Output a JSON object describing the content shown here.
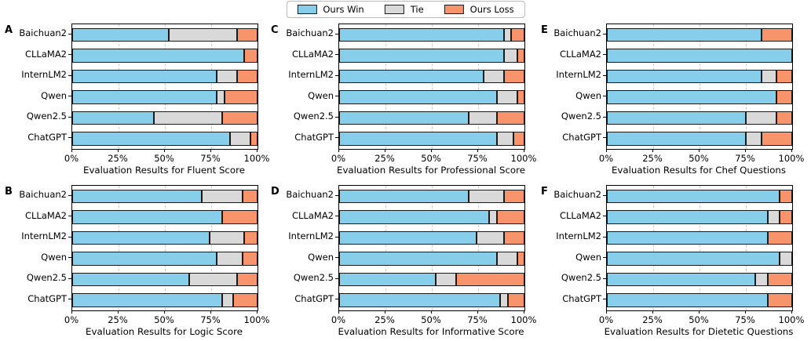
{
  "figure": {
    "background": "#ffffff",
    "models": [
      "Baichuan2",
      "CLLaMA2",
      "InternLM2",
      "Qwen",
      "Qwen2.5",
      "ChatGPT"
    ],
    "xticks": [
      "0%",
      "25%",
      "50%",
      "75%",
      "100%"
    ]
  },
  "legend": {
    "position": "top-center",
    "items": [
      {
        "label": "Ours Win",
        "color": "#87CEEB"
      },
      {
        "label": "Tie",
        "color": "#D9D9D9"
      },
      {
        "label": "Ours Loss",
        "color": "#F8946C"
      }
    ]
  },
  "colors": {
    "win": "#87CEEB",
    "tie": "#D9D9D9",
    "loss": "#F8946C",
    "bar_edge": "#1a1a1a",
    "gridline": "#cbcbcb"
  },
  "chart_data": [
    {
      "type": "bar",
      "orientation": "horizontal",
      "stacked": true,
      "grid": "dashed vertical at 25/50/75",
      "panel": "A",
      "title": "Evaluation Results for Fluent Score",
      "xlim": [
        0,
        100
      ],
      "xticks": [
        "0%",
        "25%",
        "50%",
        "75%",
        "100%"
      ],
      "categories": [
        "Baichuan2",
        "CLLaMA2",
        "InternLM2",
        "Qwen",
        "Qwen2.5",
        "ChatGPT"
      ],
      "series": [
        {
          "name": "Ours Win",
          "color": "#87CEEB",
          "values": [
            52,
            93,
            78,
            78,
            44,
            85
          ]
        },
        {
          "name": "Tie",
          "color": "#D9D9D9",
          "values": [
            37,
            0,
            11,
            4,
            37,
            11
          ]
        },
        {
          "name": "Ours Loss",
          "color": "#F8946C",
          "values": [
            11,
            7,
            11,
            18,
            19,
            4
          ]
        }
      ]
    },
    {
      "type": "bar",
      "orientation": "horizontal",
      "stacked": true,
      "grid": "dashed vertical at 25/50/75",
      "panel": "B",
      "title": "Evaluation Results for Logic Score",
      "xlim": [
        0,
        100
      ],
      "xticks": [
        "0%",
        "25%",
        "50%",
        "75%",
        "100%"
      ],
      "categories": [
        "Baichuan2",
        "CLLaMA2",
        "InternLM2",
        "Qwen",
        "Qwen2.5",
        "ChatGPT"
      ],
      "series": [
        {
          "name": "Ours Win",
          "color": "#87CEEB",
          "values": [
            70,
            81,
            74,
            78,
            63,
            81
          ]
        },
        {
          "name": "Tie",
          "color": "#D9D9D9",
          "values": [
            22,
            0,
            19,
            14,
            26,
            6
          ]
        },
        {
          "name": "Ours Loss",
          "color": "#F8946C",
          "values": [
            8,
            19,
            7,
            8,
            11,
            13
          ]
        }
      ]
    },
    {
      "type": "bar",
      "orientation": "horizontal",
      "stacked": true,
      "grid": "dashed vertical at 25/50/75",
      "panel": "C",
      "title": "Evaluation Results for Professional Score",
      "xlim": [
        0,
        100
      ],
      "xticks": [
        "0%",
        "25%",
        "50%",
        "75%",
        "100%"
      ],
      "categories": [
        "Baichuan2",
        "CLLaMA2",
        "InternLM2",
        "Qwen",
        "Qwen2.5",
        "ChatGPT"
      ],
      "series": [
        {
          "name": "Ours Win",
          "color": "#87CEEB",
          "values": [
            89,
            89,
            78,
            85,
            70,
            85
          ]
        },
        {
          "name": "Tie",
          "color": "#D9D9D9",
          "values": [
            4,
            7,
            11,
            11,
            15,
            9
          ]
        },
        {
          "name": "Ours Loss",
          "color": "#F8946C",
          "values": [
            7,
            4,
            11,
            4,
            15,
            6
          ]
        }
      ]
    },
    {
      "type": "bar",
      "orientation": "horizontal",
      "stacked": true,
      "grid": "dashed vertical at 25/50/75",
      "panel": "D",
      "title": "Evaluation Results for Informative Score",
      "xlim": [
        0,
        100
      ],
      "xticks": [
        "0%",
        "25%",
        "50%",
        "75%",
        "100%"
      ],
      "categories": [
        "Baichuan2",
        "CLLaMA2",
        "InternLM2",
        "Qwen",
        "Qwen2.5",
        "ChatGPT"
      ],
      "series": [
        {
          "name": "Ours Win",
          "color": "#87CEEB",
          "values": [
            70,
            81,
            74,
            85,
            52,
            87
          ]
        },
        {
          "name": "Tie",
          "color": "#D9D9D9",
          "values": [
            19,
            4,
            15,
            11,
            11,
            4
          ]
        },
        {
          "name": "Ours Loss",
          "color": "#F8946C",
          "values": [
            11,
            15,
            11,
            4,
            37,
            9
          ]
        }
      ]
    },
    {
      "type": "bar",
      "orientation": "horizontal",
      "stacked": true,
      "grid": "dashed vertical at 25/50/75",
      "panel": "E",
      "title": "Evaluation Results for Chef Questions",
      "xlim": [
        0,
        100
      ],
      "xticks": [
        "0%",
        "25%",
        "50%",
        "75%",
        "100%"
      ],
      "categories": [
        "Baichuan2",
        "CLLaMA2",
        "InternLM2",
        "Qwen",
        "Qwen2.5",
        "ChatGPT"
      ],
      "series": [
        {
          "name": "Ours Win",
          "color": "#87CEEB",
          "values": [
            83.3,
            100,
            83.3,
            91.7,
            75,
            75
          ]
        },
        {
          "name": "Tie",
          "color": "#D9D9D9",
          "values": [
            0,
            0,
            8.3,
            0,
            16.7,
            8.3
          ]
        },
        {
          "name": "Ours Loss",
          "color": "#F8946C",
          "values": [
            16.7,
            0,
            8.4,
            8.3,
            8.3,
            16.7
          ]
        }
      ]
    },
    {
      "type": "bar",
      "orientation": "horizontal",
      "stacked": true,
      "grid": "dashed vertical at 25/50/75",
      "panel": "F",
      "title": "Evaluation Results for Dietetic Questions",
      "xlim": [
        0,
        100
      ],
      "xticks": [
        "0%",
        "25%",
        "50%",
        "75%",
        "100%"
      ],
      "categories": [
        "Baichuan2",
        "CLLaMA2",
        "InternLM2",
        "Qwen",
        "Qwen2.5",
        "ChatGPT"
      ],
      "series": [
        {
          "name": "Ours Win",
          "color": "#87CEEB",
          "values": [
            93.3,
            86.7,
            86.7,
            93.3,
            80,
            86.7
          ]
        },
        {
          "name": "Tie",
          "color": "#D9D9D9",
          "values": [
            0,
            6.7,
            0,
            6.7,
            6.7,
            0
          ]
        },
        {
          "name": "Ours Loss",
          "color": "#F8946C",
          "values": [
            6.7,
            6.6,
            13.3,
            0,
            13.3,
            13.3
          ]
        }
      ]
    }
  ]
}
